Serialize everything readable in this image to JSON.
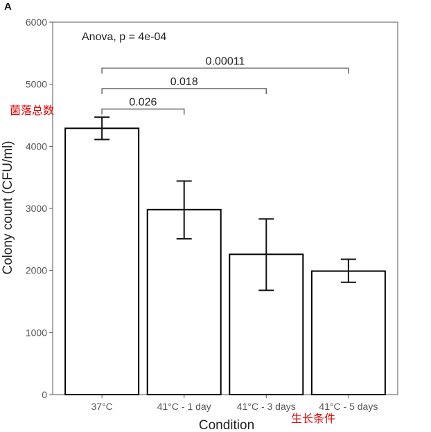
{
  "panel_label": "A",
  "annotations": {
    "y_side_label": "菌落总数",
    "x_side_label": "生长条件"
  },
  "colors": {
    "axis": "#555555",
    "bar_fill": "#ffffff",
    "bar_stroke": "#000000",
    "annotation": "#e00000",
    "text": "#222222"
  },
  "chart_data": {
    "type": "bar",
    "xlabel": "Condition",
    "ylabel": "Colony count (CFU/ml)",
    "ylim": [
      0,
      6000
    ],
    "yticks": [
      "0",
      "1000",
      "2000",
      "3000",
      "4000",
      "5000",
      "6000"
    ],
    "grid": false,
    "categories": [
      "37°C",
      "41°C - 1 day",
      "41°C - 3 days",
      "41°C - 5 days"
    ],
    "values": [
      4290,
      2980,
      2260,
      1990
    ],
    "error_low": [
      4110,
      2510,
      1680,
      1810
    ],
    "error_high": [
      4470,
      3440,
      2830,
      2180
    ],
    "stat_test": "Anova, p = 4e-04",
    "comparisons": [
      {
        "from": 0,
        "to": 1,
        "label": "0.026",
        "level": 4600
      },
      {
        "from": 0,
        "to": 2,
        "label": "0.018",
        "level": 4930
      },
      {
        "from": 0,
        "to": 3,
        "label": "0.00011",
        "level": 5260
      }
    ]
  }
}
